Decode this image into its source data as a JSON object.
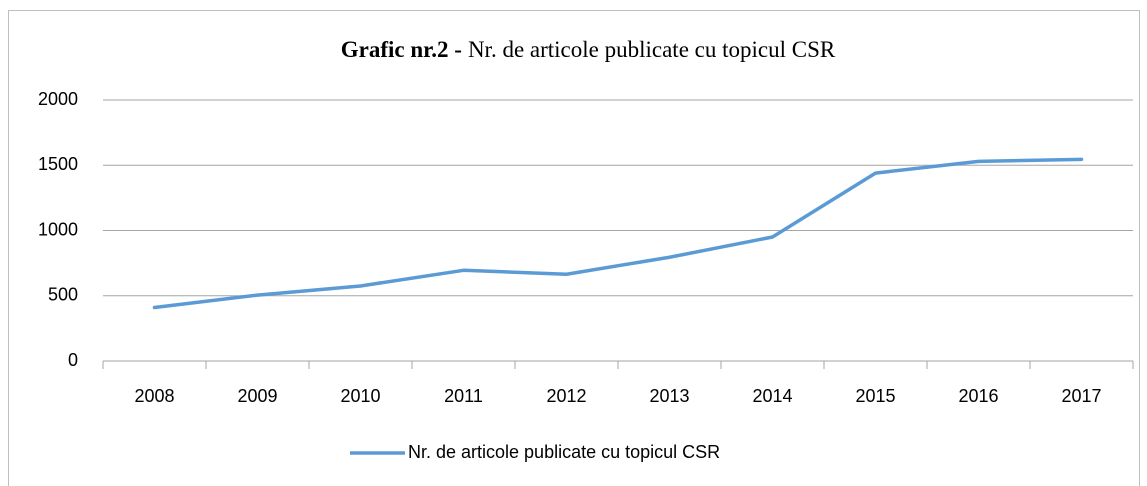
{
  "chart_data": {
    "type": "line",
    "title_prefix": "Grafic nr.2 -",
    "title": "Nr. de articole publicate cu topicul CSR",
    "categories": [
      "2008",
      "2009",
      "2010",
      "2011",
      "2012",
      "2013",
      "2014",
      "2015",
      "2016",
      "2017"
    ],
    "series": [
      {
        "name": "Nr. de articole publicate cu topicul CSR",
        "color": "#5b9bd5",
        "values": [
          410,
          505,
          575,
          695,
          665,
          795,
          950,
          1440,
          1530,
          1545
        ]
      }
    ],
    "ylim": [
      0,
      2000
    ],
    "yticks": [
      0,
      500,
      1000,
      1500,
      2000
    ],
    "grid": true,
    "legend": "bottom"
  }
}
